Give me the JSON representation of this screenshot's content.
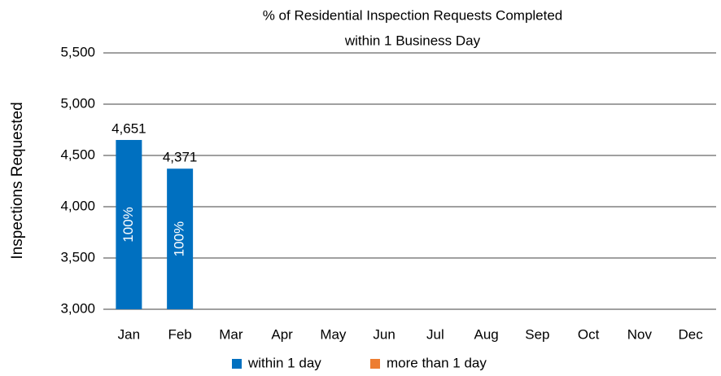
{
  "chart_data": {
    "type": "stacked_bar",
    "title": [
      "% of Residential Inspection Requests Completed",
      "within 1 Business Day"
    ],
    "ylabel": "Inspections Requested",
    "categories": [
      "Jan",
      "Feb",
      "Mar",
      "Apr",
      "May",
      "Jun",
      "Jul",
      "Aug",
      "Sep",
      "Oct",
      "Nov",
      "Dec"
    ],
    "series": [
      {
        "name": "within 1 day",
        "color": "#0070c0",
        "values": [
          4651,
          4371,
          null,
          null,
          null,
          null,
          null,
          null,
          null,
          null,
          null,
          null
        ],
        "value_labels": [
          "4,651",
          "4,371",
          null,
          null,
          null,
          null,
          null,
          null,
          null,
          null,
          null,
          null
        ],
        "percent_values": [
          100,
          100,
          null,
          null,
          null,
          null,
          null,
          null,
          null,
          null,
          null,
          null
        ],
        "percent_labels": [
          "100%",
          "100%",
          null,
          null,
          null,
          null,
          null,
          null,
          null,
          null,
          null,
          null
        ]
      },
      {
        "name": "more than 1 day",
        "color": "#ed7d31",
        "values": [
          null,
          null,
          null,
          null,
          null,
          null,
          null,
          null,
          null,
          null,
          null,
          null
        ]
      }
    ],
    "ylim": [
      3000,
      5500
    ],
    "yticks": [
      {
        "value": 3000,
        "label": "3,000"
      },
      {
        "value": 3500,
        "label": "3,500"
      },
      {
        "value": 4000,
        "label": "4,000"
      },
      {
        "value": 4500,
        "label": "4,500"
      },
      {
        "value": 5000,
        "label": "5,000"
      },
      {
        "value": 5500,
        "label": "5,500"
      }
    ],
    "grid": true,
    "legend": "bottom"
  }
}
